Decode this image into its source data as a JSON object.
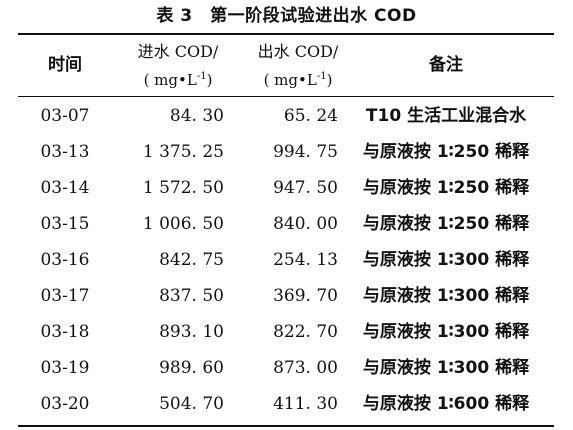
{
  "caption": "表 3　第一阶段试验进出水 COD",
  "columns": {
    "date": "时间",
    "influent_label": "进水 COD/",
    "effluent_label": "出水 COD/",
    "unit_prefix": "( mg•L",
    "unit_exp": "-1",
    "unit_suffix": ")",
    "note": "备注"
  },
  "rows": [
    {
      "date": "03-07",
      "influent": "84. 30",
      "effluent": "65. 24",
      "note": "T10 生活工业混合水"
    },
    {
      "date": "03-13",
      "influent": "1 375. 25",
      "effluent": "994. 75",
      "note": "与原液按 1∶250 稀释"
    },
    {
      "date": "03-14",
      "influent": "1 572. 50",
      "effluent": "947. 50",
      "note": "与原液按 1∶250 稀释"
    },
    {
      "date": "03-15",
      "influent": "1 006. 50",
      "effluent": "840. 00",
      "note": "与原液按 1∶250 稀释"
    },
    {
      "date": "03-16",
      "influent": "842. 75",
      "effluent": "254. 13",
      "note": "与原液按 1∶300 稀释"
    },
    {
      "date": "03-17",
      "influent": "837. 50",
      "effluent": "369. 70",
      "note": "与原液按 1∶300 稀释"
    },
    {
      "date": "03-18",
      "influent": "893. 10",
      "effluent": "822. 70",
      "note": "与原液按 1∶300 稀释"
    },
    {
      "date": "03-19",
      "influent": "989. 60",
      "effluent": "873. 00",
      "note": "与原液按 1∶300 稀释"
    },
    {
      "date": "03-20",
      "influent": "504. 70",
      "effluent": "411. 30",
      "note": "与原液按 1∶600 稀释"
    }
  ]
}
